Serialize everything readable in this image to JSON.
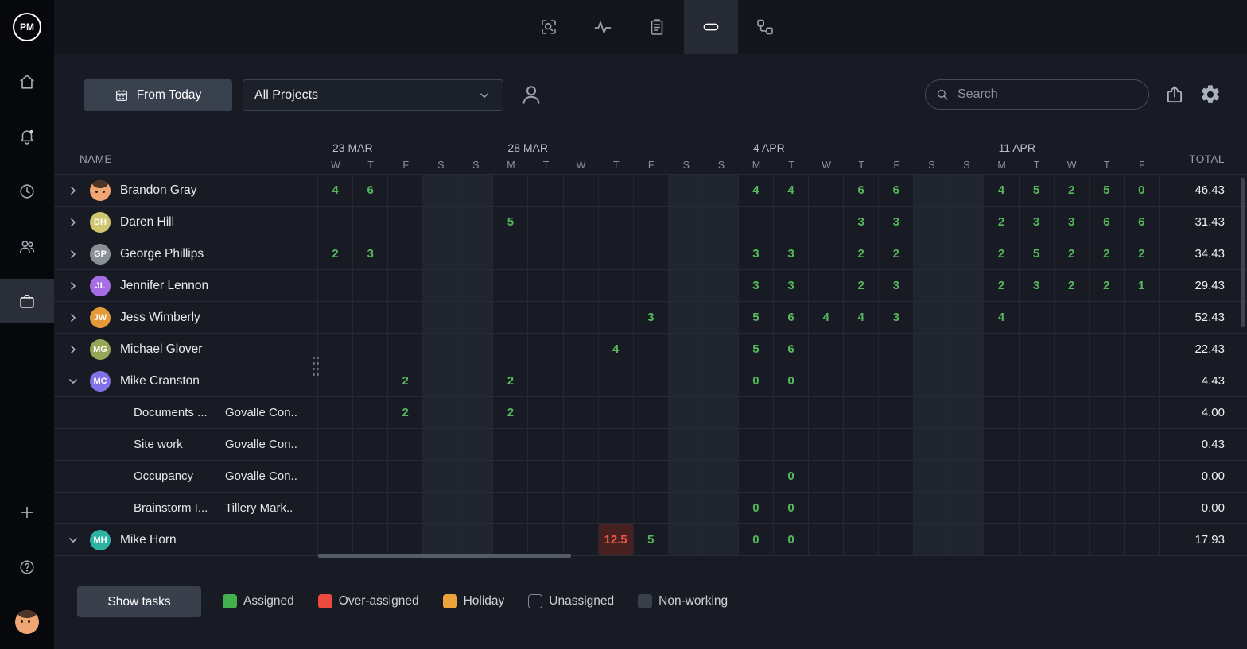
{
  "app": {
    "logo_text": "PM"
  },
  "sidebar": {
    "items": [
      {
        "icon": "home"
      },
      {
        "icon": "bell"
      },
      {
        "icon": "clock"
      },
      {
        "icon": "people"
      },
      {
        "icon": "briefcase",
        "active": true
      }
    ],
    "bottom_items": [
      {
        "icon": "plus"
      },
      {
        "icon": "help"
      },
      {
        "icon": "user-avatar"
      }
    ]
  },
  "topbar": {
    "tabs": [
      {
        "icon": "zoom-select",
        "active": false
      },
      {
        "icon": "activity",
        "active": false
      },
      {
        "icon": "clipboard",
        "active": false
      },
      {
        "icon": "workload",
        "active": true
      },
      {
        "icon": "sitemap",
        "active": false
      }
    ]
  },
  "filterbar": {
    "date_button_label": "From Today",
    "project_filter_value": "All Projects",
    "search_placeholder": "Search",
    "icons": [
      "calendar",
      "chevron-down",
      "person",
      "search",
      "export",
      "gear"
    ]
  },
  "grid": {
    "name_header": "NAME",
    "total_header": "TOTAL",
    "week_groups": [
      {
        "label": "23 MAR",
        "days": [
          "W",
          "T",
          "F",
          "S",
          "S"
        ]
      },
      {
        "label": "28 MAR",
        "days": [
          "M",
          "T",
          "W",
          "T",
          "F",
          "S",
          "S"
        ]
      },
      {
        "label": "4 APR",
        "days": [
          "M",
          "T",
          "W",
          "T",
          "F",
          "S",
          "S"
        ]
      },
      {
        "label": "11 APR",
        "days": [
          "M",
          "T",
          "W",
          "T",
          "F"
        ]
      }
    ],
    "rows": [
      {
        "type": "person",
        "name": "Brandon Gray",
        "avatar": "face",
        "expanded": false,
        "total": "46.43",
        "cells": [
          {
            "col": 0,
            "v": "4"
          },
          {
            "col": 1,
            "v": "6"
          },
          {
            "col": 12,
            "v": "4"
          },
          {
            "col": 13,
            "v": "4"
          },
          {
            "col": 15,
            "v": "6"
          },
          {
            "col": 16,
            "v": "6"
          },
          {
            "col": 19,
            "v": "4"
          },
          {
            "col": 20,
            "v": "5"
          },
          {
            "col": 21,
            "v": "2"
          },
          {
            "col": 22,
            "v": "5"
          },
          {
            "col": 23,
            "v": "0"
          }
        ]
      },
      {
        "type": "person",
        "name": "Daren Hill",
        "initials": "DH",
        "avatar_color": "#cfc66e",
        "expanded": false,
        "total": "31.43",
        "cells": [
          {
            "col": 5,
            "v": "5"
          },
          {
            "col": 15,
            "v": "3"
          },
          {
            "col": 16,
            "v": "3"
          },
          {
            "col": 19,
            "v": "2"
          },
          {
            "col": 20,
            "v": "3"
          },
          {
            "col": 21,
            "v": "3"
          },
          {
            "col": 22,
            "v": "6"
          },
          {
            "col": 23,
            "v": "6"
          }
        ]
      },
      {
        "type": "person",
        "name": "George Phillips",
        "initials": "GP",
        "avatar_color": "#8a9097",
        "expanded": false,
        "total": "34.43",
        "cells": [
          {
            "col": 0,
            "v": "2"
          },
          {
            "col": 1,
            "v": "3"
          },
          {
            "col": 12,
            "v": "3"
          },
          {
            "col": 13,
            "v": "3"
          },
          {
            "col": 15,
            "v": "2"
          },
          {
            "col": 16,
            "v": "2"
          },
          {
            "col": 19,
            "v": "2"
          },
          {
            "col": 20,
            "v": "5"
          },
          {
            "col": 21,
            "v": "2"
          },
          {
            "col": 22,
            "v": "2"
          },
          {
            "col": 23,
            "v": "2"
          }
        ]
      },
      {
        "type": "person",
        "name": "Jennifer Lennon",
        "initials": "JL",
        "avatar_color": "#a76de4",
        "expanded": false,
        "total": "29.43",
        "cells": [
          {
            "col": 12,
            "v": "3"
          },
          {
            "col": 13,
            "v": "3"
          },
          {
            "col": 15,
            "v": "2"
          },
          {
            "col": 16,
            "v": "3"
          },
          {
            "col": 19,
            "v": "2"
          },
          {
            "col": 20,
            "v": "3"
          },
          {
            "col": 21,
            "v": "2"
          },
          {
            "col": 22,
            "v": "2"
          },
          {
            "col": 23,
            "v": "1"
          }
        ]
      },
      {
        "type": "person",
        "name": "Jess Wimberly",
        "initials": "JW",
        "avatar_color": "#e39a3b",
        "expanded": false,
        "total": "52.43",
        "cells": [
          {
            "col": 9,
            "v": "3"
          },
          {
            "col": 12,
            "v": "5"
          },
          {
            "col": 13,
            "v": "6"
          },
          {
            "col": 14,
            "v": "4"
          },
          {
            "col": 15,
            "v": "4"
          },
          {
            "col": 16,
            "v": "3"
          },
          {
            "col": 19,
            "v": "4"
          }
        ]
      },
      {
        "type": "person",
        "name": "Michael Glover",
        "initials": "MG",
        "avatar_color": "#97a557",
        "expanded": false,
        "total": "22.43",
        "cells": [
          {
            "col": 8,
            "v": "4"
          },
          {
            "col": 12,
            "v": "5"
          },
          {
            "col": 13,
            "v": "6"
          }
        ]
      },
      {
        "type": "person",
        "name": "Mike Cranston",
        "initials": "MC",
        "avatar_color": "#8271e6",
        "expanded": true,
        "total": "4.43",
        "cells": [
          {
            "col": 2,
            "v": "2"
          },
          {
            "col": 5,
            "v": "2"
          },
          {
            "col": 12,
            "v": "0"
          },
          {
            "col": 13,
            "v": "0"
          }
        ]
      },
      {
        "type": "task",
        "name": "Documents ...",
        "project": "Govalle Con..",
        "total": "4.00",
        "cells": [
          {
            "col": 2,
            "v": "2"
          },
          {
            "col": 5,
            "v": "2"
          }
        ]
      },
      {
        "type": "task",
        "name": "Site work",
        "project": "Govalle Con..",
        "total": "0.43",
        "cells": []
      },
      {
        "type": "task",
        "name": "Occupancy",
        "project": "Govalle Con..",
        "total": "0.00",
        "cells": [
          {
            "col": 13,
            "v": "0"
          }
        ]
      },
      {
        "type": "task",
        "name": "Brainstorm I...",
        "project": "Tillery Mark..",
        "total": "0.00",
        "cells": [
          {
            "col": 12,
            "v": "0"
          },
          {
            "col": 13,
            "v": "0"
          }
        ]
      },
      {
        "type": "person",
        "name": "Mike Horn",
        "initials": "MH",
        "avatar_color": "#2fb1a3",
        "expanded": true,
        "total": "17.93",
        "cells": [
          {
            "col": 8,
            "v": "12.5",
            "state": "over"
          },
          {
            "col": 9,
            "v": "5"
          },
          {
            "col": 12,
            "v": "0"
          },
          {
            "col": 13,
            "v": "0"
          }
        ]
      }
    ]
  },
  "footer": {
    "show_tasks_label": "Show tasks",
    "legend": [
      {
        "label": "Assigned",
        "style": "filled",
        "color": "#41b14e"
      },
      {
        "label": "Over-assigned",
        "style": "filled",
        "color": "#ea4b3e"
      },
      {
        "label": "Holiday",
        "style": "filled",
        "color": "#eda33b"
      },
      {
        "label": "Unassigned",
        "style": "outline",
        "color": "#828994"
      },
      {
        "label": "Non-working",
        "style": "filled",
        "color": "#3a4049"
      }
    ]
  },
  "colors": {
    "assigned_text": "#55b85c",
    "over_text": "#f2564a",
    "over_cell_bg": "#46211f",
    "weekend_cell_bg": "#21252e"
  }
}
